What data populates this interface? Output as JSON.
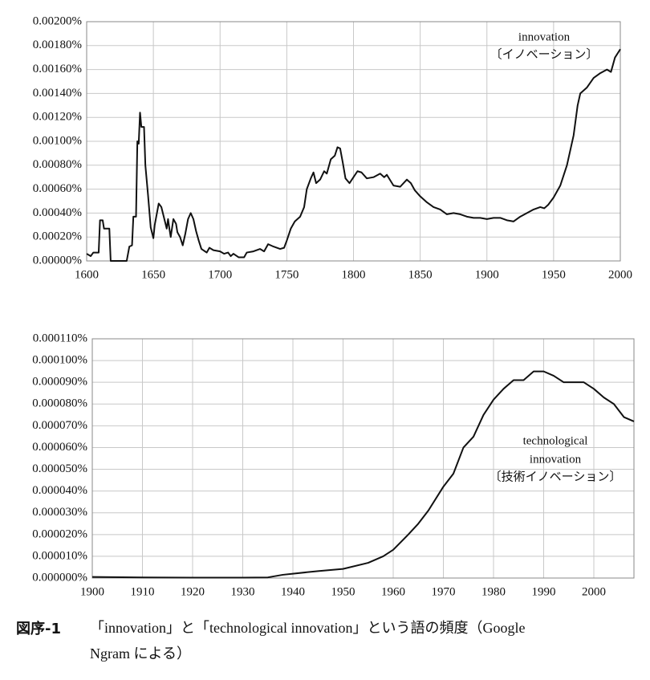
{
  "chart_data": [
    {
      "type": "line",
      "annotations": [
        "innovation",
        "〔イノベーション〕"
      ],
      "xlim": [
        1600,
        2000
      ],
      "xticks": [
        1600,
        1650,
        1700,
        1750,
        1800,
        1850,
        1900,
        1950,
        2000
      ],
      "ylim": [
        0,
        0.002
      ],
      "yticks": [
        {
          "value": 0,
          "label": "0.00000%"
        },
        {
          "value": 0.0002,
          "label": "0.00020%"
        },
        {
          "value": 0.0004,
          "label": "0.00040%"
        },
        {
          "value": 0.0006,
          "label": "0.00060%"
        },
        {
          "value": 0.0008,
          "label": "0.00080%"
        },
        {
          "value": 0.001,
          "label": "0.00100%"
        },
        {
          "value": 0.0012,
          "label": "0.00120%"
        },
        {
          "value": 0.0014,
          "label": "0.00140%"
        },
        {
          "value": 0.0016,
          "label": "0.00160%"
        },
        {
          "value": 0.0018,
          "label": "0.00180%"
        },
        {
          "value": 0.002,
          "label": "0.00200%"
        }
      ],
      "grid": true,
      "color": "#111111",
      "x": [
        1600,
        1603,
        1605,
        1609,
        1610,
        1612,
        1613,
        1617,
        1618,
        1630,
        1632,
        1634,
        1635,
        1637,
        1638,
        1639,
        1640,
        1641,
        1643,
        1644,
        1646,
        1648,
        1650,
        1651,
        1654,
        1656,
        1658,
        1660,
        1661,
        1662,
        1663,
        1665,
        1667,
        1668,
        1670,
        1672,
        1674,
        1676,
        1678,
        1680,
        1682,
        1684,
        1686,
        1690,
        1692,
        1695,
        1700,
        1703,
        1706,
        1708,
        1710,
        1714,
        1718,
        1720,
        1725,
        1730,
        1733,
        1736,
        1740,
        1745,
        1748,
        1750,
        1753,
        1756,
        1760,
        1763,
        1765,
        1768,
        1770,
        1772,
        1775,
        1778,
        1780,
        1783,
        1786,
        1788,
        1790,
        1792,
        1794,
        1797,
        1800,
        1803,
        1806,
        1810,
        1815,
        1820,
        1823,
        1825,
        1830,
        1835,
        1840,
        1843,
        1846,
        1850,
        1855,
        1860,
        1865,
        1870,
        1875,
        1880,
        1885,
        1890,
        1895,
        1900,
        1905,
        1910,
        1915,
        1920,
        1925,
        1930,
        1935,
        1940,
        1943,
        1946,
        1950,
        1955,
        1960,
        1965,
        1968,
        1970,
        1975,
        1980,
        1985,
        1990,
        1993,
        1996,
        2000
      ],
      "values": [
        6e-05,
        4e-05,
        7e-05,
        7e-05,
        0.00034,
        0.00034,
        0.00027,
        0.00027,
        0,
        0,
        0.00012,
        0.00013,
        0.00037,
        0.00037,
        0.001,
        0.00098,
        0.00124,
        0.00112,
        0.00112,
        0.0008,
        0.00055,
        0.00028,
        0.00019,
        0.0003,
        0.00048,
        0.00045,
        0.00036,
        0.00027,
        0.00035,
        0.00027,
        0.0002,
        0.00035,
        0.00031,
        0.00024,
        0.0002,
        0.00013,
        0.00023,
        0.00035,
        0.0004,
        0.00035,
        0.00025,
        0.00017,
        0.0001,
        7e-05,
        0.00011,
        9e-05,
        8e-05,
        6e-05,
        7e-05,
        4e-05,
        6e-05,
        3e-05,
        3e-05,
        7e-05,
        8e-05,
        0.0001,
        8e-05,
        0.00014,
        0.00012,
        0.0001,
        0.00011,
        0.00017,
        0.00027,
        0.00033,
        0.00037,
        0.00045,
        0.0006,
        0.00069,
        0.00074,
        0.00065,
        0.00068,
        0.00075,
        0.00073,
        0.00085,
        0.00088,
        0.00095,
        0.00094,
        0.00082,
        0.00069,
        0.00065,
        0.0007,
        0.00075,
        0.00074,
        0.00069,
        0.0007,
        0.00073,
        0.0007,
        0.00072,
        0.00063,
        0.00062,
        0.00068,
        0.00065,
        0.00059,
        0.00054,
        0.00049,
        0.00045,
        0.00043,
        0.00039,
        0.0004,
        0.00039,
        0.00037,
        0.00036,
        0.00036,
        0.00035,
        0.00036,
        0.00036,
        0.00034,
        0.00033,
        0.00037,
        0.0004,
        0.00043,
        0.00045,
        0.00044,
        0.00047,
        0.00053,
        0.00063,
        0.0008,
        0.00105,
        0.0013,
        0.0014,
        0.00145,
        0.00153,
        0.00157,
        0.0016,
        0.00158,
        0.0017,
        0.00177
      ]
    },
    {
      "type": "line",
      "annotations": [
        "technological",
        "innovation",
        "〔技術イノベーション〕"
      ],
      "xlim": [
        1900,
        2008
      ],
      "xticks": [
        1900,
        1910,
        1920,
        1930,
        1940,
        1950,
        1960,
        1970,
        1980,
        1990,
        2000
      ],
      "ylim": [
        0,
        0.00011
      ],
      "yticks": [
        {
          "value": 0,
          "label": "0.000000%"
        },
        {
          "value": 1e-05,
          "label": "0.000010%"
        },
        {
          "value": 2e-05,
          "label": "0.000020%"
        },
        {
          "value": 3e-05,
          "label": "0.000030%"
        },
        {
          "value": 4e-05,
          "label": "0.000040%"
        },
        {
          "value": 5e-05,
          "label": "0.000050%"
        },
        {
          "value": 6e-05,
          "label": "0.000060%"
        },
        {
          "value": 7e-05,
          "label": "0.000070%"
        },
        {
          "value": 8e-05,
          "label": "0.000080%"
        },
        {
          "value": 9e-05,
          "label": "0.000090%"
        },
        {
          "value": 0.0001,
          "label": "0.000100%"
        },
        {
          "value": 0.00011,
          "label": "0.000110%"
        }
      ],
      "grid": true,
      "color": "#111111",
      "x": [
        1900,
        1910,
        1920,
        1930,
        1935,
        1938,
        1940,
        1945,
        1950,
        1955,
        1958,
        1960,
        1963,
        1965,
        1967,
        1970,
        1972,
        1974,
        1976,
        1978,
        1980,
        1982,
        1984,
        1986,
        1988,
        1990,
        1992,
        1994,
        1996,
        1998,
        2000,
        2002,
        2004,
        2006,
        2008
      ],
      "values": [
        5e-07,
        3e-07,
        2e-07,
        2e-07,
        3e-07,
        1.5e-06,
        2e-06,
        3.2e-06,
        4.2e-06,
        7e-06,
        1e-05,
        1.3e-05,
        2e-05,
        2.5e-05,
        3.1e-05,
        4.2e-05,
        4.8e-05,
        6e-05,
        6.5e-05,
        7.5e-05,
        8.2e-05,
        8.7e-05,
        9.1e-05,
        9.1e-05,
        9.5e-05,
        9.5e-05,
        9.3e-05,
        9e-05,
        9e-05,
        9e-05,
        8.7e-05,
        8.3e-05,
        8e-05,
        7.4e-05,
        7.2e-05
      ]
    }
  ],
  "caption": {
    "label": "図序-1",
    "lines": [
      "「innovation」と「technological innovation」という語の頻度（Google",
      "Ngram による）"
    ]
  }
}
